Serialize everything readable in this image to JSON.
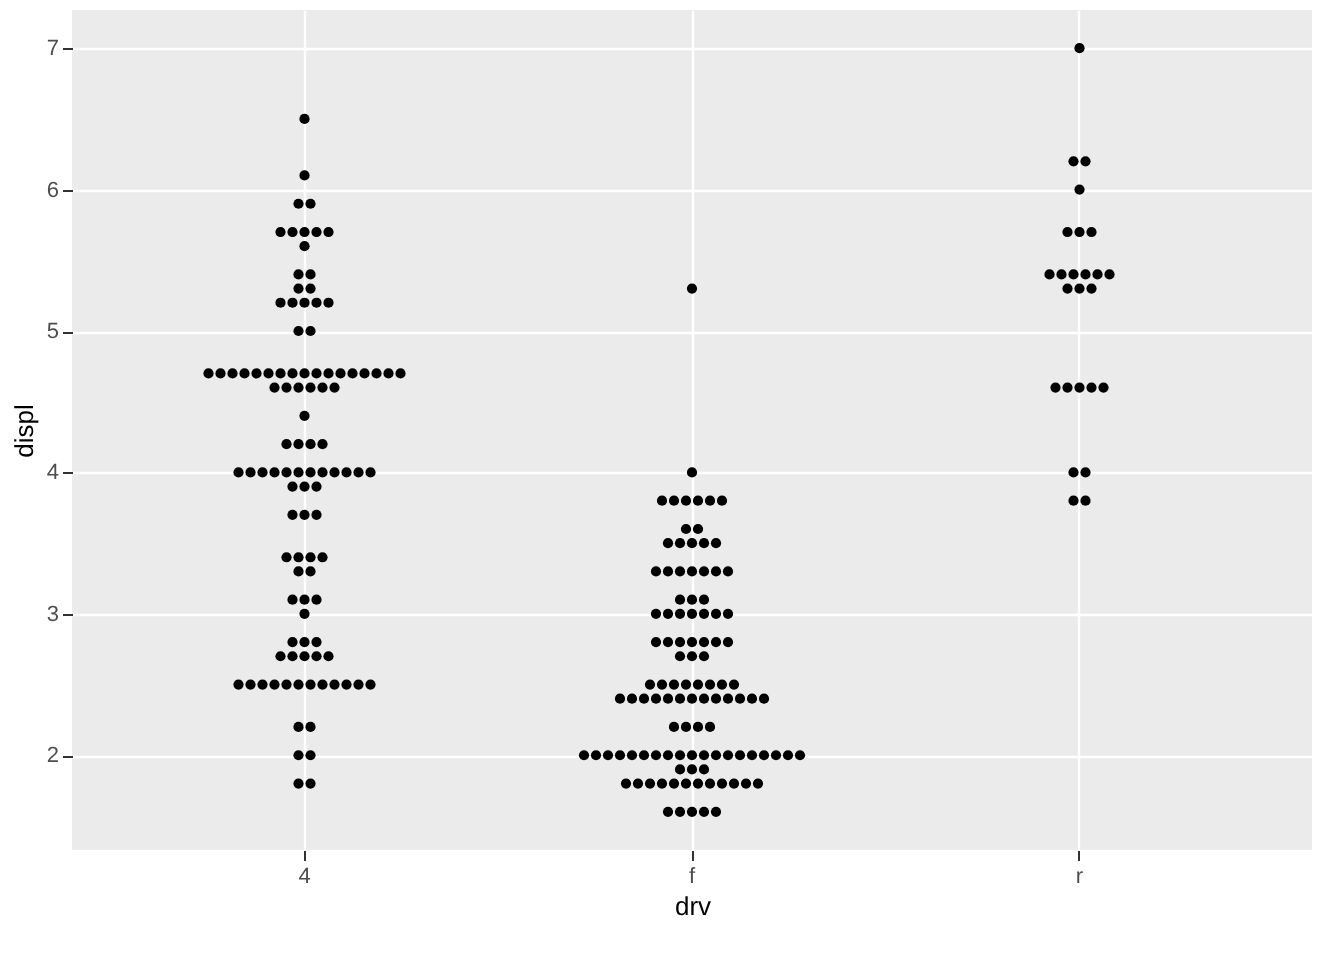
{
  "chart_data": {
    "type": "scatter",
    "xlabel": "drv",
    "ylabel": "displ",
    "categories": [
      "4",
      "f",
      "r"
    ],
    "ylim": [
      1.33,
      7.27
    ],
    "yticks": [
      2,
      3,
      4,
      5,
      6,
      7
    ],
    "grid": true,
    "marker": "circle",
    "series": [
      {
        "color": "#000000",
        "x": [
          "4",
          "4",
          "4",
          "4",
          "4",
          "4",
          "4",
          "4",
          "4",
          "4",
          "4",
          "4",
          "4",
          "4",
          "4",
          "4",
          "4",
          "4",
          "4",
          "4",
          "4",
          "4",
          "4",
          "4",
          "4",
          "4",
          "4",
          "4",
          "4",
          "4",
          "4",
          "4",
          "4",
          "4",
          "4",
          "4",
          "4",
          "4",
          "4",
          "4",
          "4",
          "4",
          "4",
          "4",
          "4",
          "4",
          "4",
          "4",
          "4",
          "4",
          "4",
          "4",
          "4",
          "4",
          "4",
          "4",
          "4",
          "4",
          "4",
          "4",
          "4",
          "4",
          "4",
          "4",
          "4",
          "4",
          "4",
          "4",
          "4",
          "4",
          "4",
          "4",
          "4",
          "4",
          "4",
          "4",
          "4",
          "4",
          "4",
          "4",
          "4",
          "4",
          "4",
          "4",
          "4",
          "4",
          "4",
          "4",
          "4",
          "4",
          "4",
          "4",
          "4",
          "4",
          "4",
          "4",
          "4",
          "4",
          "4",
          "4",
          "4",
          "4",
          "4",
          "f",
          "f",
          "f",
          "f",
          "f",
          "f",
          "f",
          "f",
          "f",
          "f",
          "f",
          "f",
          "f",
          "f",
          "f",
          "f",
          "f",
          "f",
          "f",
          "f",
          "f",
          "f",
          "f",
          "f",
          "f",
          "f",
          "f",
          "f",
          "f",
          "f",
          "f",
          "f",
          "f",
          "f",
          "f",
          "f",
          "f",
          "f",
          "f",
          "f",
          "f",
          "f",
          "f",
          "f",
          "f",
          "f",
          "f",
          "f",
          "f",
          "f",
          "f",
          "f",
          "f",
          "f",
          "f",
          "f",
          "f",
          "f",
          "f",
          "f",
          "f",
          "f",
          "f",
          "f",
          "f",
          "f",
          "f",
          "f",
          "f",
          "f",
          "f",
          "f",
          "f",
          "f",
          "f",
          "f",
          "f",
          "f",
          "f",
          "f",
          "f",
          "f",
          "f",
          "f",
          "f",
          "f",
          "f",
          "f",
          "f",
          "f",
          "f",
          "f",
          "f",
          "f",
          "f",
          "f",
          "f",
          "f",
          "f",
          "f",
          "f",
          "f",
          "f",
          "f",
          "f",
          "f",
          "r",
          "r",
          "r",
          "r",
          "r",
          "r",
          "r",
          "r",
          "r",
          "r",
          "r",
          "r",
          "r",
          "r",
          "r",
          "r",
          "r",
          "r",
          "r",
          "r",
          "r",
          "r",
          "r",
          "r",
          "r"
        ],
        "values": [
          6.5,
          6.1,
          5.9,
          5.9,
          5.7,
          5.7,
          5.7,
          5.7,
          5.7,
          5.6,
          5.4,
          5.4,
          5.3,
          5.3,
          5.2,
          5.2,
          5.2,
          5.2,
          5.2,
          5.0,
          5.0,
          4.7,
          4.7,
          4.7,
          4.7,
          4.7,
          4.7,
          4.7,
          4.7,
          4.7,
          4.7,
          4.7,
          4.7,
          4.7,
          4.7,
          4.7,
          4.7,
          4.7,
          4.6,
          4.6,
          4.6,
          4.6,
          4.6,
          4.6,
          4.4,
          4.2,
          4.2,
          4.2,
          4.2,
          4.0,
          4.0,
          4.0,
          4.0,
          4.0,
          4.0,
          4.0,
          4.0,
          4.0,
          4.0,
          4.0,
          4.0,
          3.9,
          3.9,
          3.9,
          3.7,
          3.7,
          3.7,
          3.4,
          3.4,
          3.4,
          3.4,
          3.3,
          3.3,
          3.1,
          3.1,
          3.1,
          3.0,
          2.8,
          2.8,
          2.8,
          2.7,
          2.7,
          2.7,
          2.7,
          2.7,
          2.5,
          2.5,
          2.5,
          2.5,
          2.5,
          2.5,
          2.5,
          2.5,
          2.5,
          2.5,
          2.5,
          2.5,
          2.2,
          2.2,
          2.0,
          2.0,
          1.8,
          1.8,
          5.3,
          4.0,
          3.8,
          3.8,
          3.8,
          3.8,
          3.8,
          3.8,
          3.6,
          3.6,
          3.5,
          3.5,
          3.5,
          3.5,
          3.5,
          3.3,
          3.3,
          3.3,
          3.3,
          3.3,
          3.3,
          3.3,
          3.1,
          3.1,
          3.1,
          3.0,
          3.0,
          3.0,
          3.0,
          3.0,
          3.0,
          3.0,
          2.8,
          2.8,
          2.8,
          2.8,
          2.8,
          2.8,
          2.8,
          2.7,
          2.7,
          2.7,
          2.5,
          2.5,
          2.5,
          2.5,
          2.5,
          2.5,
          2.5,
          2.5,
          2.4,
          2.4,
          2.4,
          2.4,
          2.4,
          2.4,
          2.4,
          2.4,
          2.4,
          2.4,
          2.4,
          2.4,
          2.4,
          2.2,
          2.2,
          2.2,
          2.2,
          2.0,
          2.0,
          2.0,
          2.0,
          2.0,
          2.0,
          2.0,
          2.0,
          2.0,
          2.0,
          2.0,
          2.0,
          2.0,
          2.0,
          2.0,
          2.0,
          2.0,
          2.0,
          2.0,
          1.9,
          1.9,
          1.9,
          1.8,
          1.8,
          1.8,
          1.8,
          1.8,
          1.8,
          1.8,
          1.8,
          1.8,
          1.8,
          1.8,
          1.8,
          1.6,
          1.6,
          1.6,
          1.6,
          1.6,
          7.0,
          6.2,
          6.2,
          6.0,
          5.7,
          5.7,
          5.7,
          5.4,
          5.4,
          5.4,
          5.4,
          5.4,
          5.4,
          5.3,
          5.3,
          5.3,
          4.6,
          4.6,
          4.6,
          4.6,
          4.6,
          4.0,
          4.0,
          3.8,
          3.8
        ]
      }
    ]
  }
}
